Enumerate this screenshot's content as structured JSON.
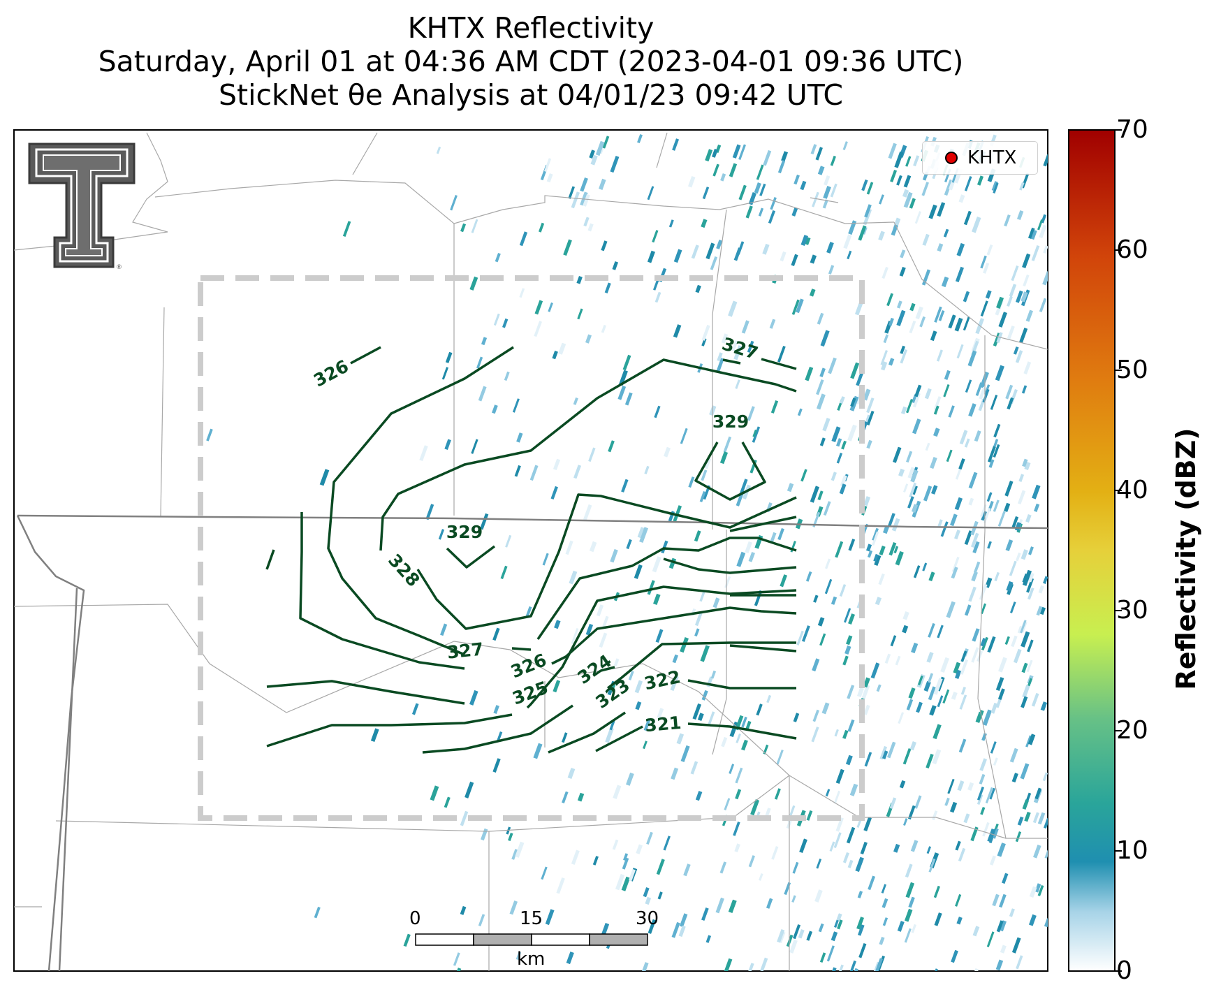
{
  "title": {
    "line1": "KHTX Reflectivity",
    "line2": "Saturday, April 01 at 04:36 AM CDT (2023-04-01 09:36 UTC)",
    "line3": "StickNet θe Analysis at 04/01/23 09:42 UTC"
  },
  "legend": {
    "marker_label": "KHTX",
    "marker_color": "#e00000"
  },
  "colorbar": {
    "label": "Reflectivity (dBZ)",
    "ticks": [
      "0",
      "10",
      "20",
      "30",
      "40",
      "50",
      "60",
      "70"
    ],
    "range": [
      0,
      70
    ]
  },
  "scale_bar": {
    "ticks": [
      "0",
      "15",
      "30"
    ],
    "unit": "km"
  },
  "contours": {
    "color": "#0a4a22",
    "labels": [
      "326",
      "327",
      "329",
      "329",
      "328",
      "327",
      "326",
      "325",
      "324",
      "323",
      "322",
      "321"
    ]
  },
  "logo": {
    "name": "Texas Tech double-T logo"
  },
  "colors": {
    "analysis_box": "#cccccc",
    "contour": "#0a4a22",
    "state_border": "#808080",
    "county_border": "#a0a0a0"
  }
}
